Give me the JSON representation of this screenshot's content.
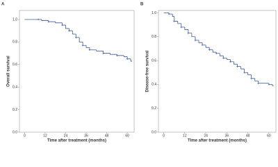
{
  "chart_data": [
    {
      "type": "line",
      "label": "A",
      "ylabel": "Overall survival",
      "xlabel": "Time after treatment (months)",
      "xlim": [
        -3,
        64
      ],
      "ylim": [
        0,
        1.08
      ],
      "xticks": [
        0,
        12,
        24,
        36,
        48,
        60
      ],
      "yticks": [
        {
          "value": 0,
          "label": "0.0"
        },
        {
          "value": 0.2,
          "label": "0.2"
        },
        {
          "value": 0.4,
          "label": "0.4"
        },
        {
          "value": 0.6,
          "label": "0.6"
        },
        {
          "value": 0.8,
          "label": "0.8"
        },
        {
          "value": 1,
          "label": "1.0"
        }
      ],
      "series": [
        {
          "color": "#3a5a9c",
          "x": [
            0,
            8,
            10,
            14,
            18,
            22,
            24,
            26,
            28,
            30,
            32,
            34,
            36,
            38,
            42,
            46,
            50,
            54,
            58,
            60,
            62
          ],
          "values": [
            1.0,
            1.0,
            0.99,
            0.98,
            0.97,
            0.95,
            0.92,
            0.9,
            0.87,
            0.84,
            0.8,
            0.77,
            0.75,
            0.73,
            0.72,
            0.7,
            0.69,
            0.68,
            0.67,
            0.65,
            0.63
          ]
        }
      ]
    },
    {
      "type": "line",
      "label": "B",
      "ylabel": "Disease-free survival",
      "xlabel": "Time after treatment (months)",
      "xlim": [
        -3,
        64
      ],
      "ylim": [
        0,
        1.02
      ],
      "xticks": [
        0,
        12,
        24,
        36,
        48,
        60
      ],
      "yticks": [
        {
          "value": 0,
          "label": "0.0"
        },
        {
          "value": 0.2,
          "label": "0.2"
        },
        {
          "value": 0.4,
          "label": "0.4"
        },
        {
          "value": 0.6,
          "label": "0.6"
        },
        {
          "value": 0.8,
          "label": "0.8"
        },
        {
          "value": 1,
          "label": "1.0"
        }
      ],
      "series": [
        {
          "color": "#3a5a9c",
          "x": [
            0,
            3,
            5,
            6,
            8,
            10,
            12,
            14,
            16,
            18,
            20,
            22,
            24,
            26,
            28,
            30,
            32,
            34,
            36,
            38,
            40,
            42,
            44,
            46,
            48,
            50,
            52,
            54,
            58,
            60,
            62
          ],
          "values": [
            1.0,
            0.99,
            0.97,
            0.93,
            0.91,
            0.88,
            0.86,
            0.83,
            0.8,
            0.77,
            0.75,
            0.73,
            0.71,
            0.69,
            0.67,
            0.66,
            0.64,
            0.62,
            0.61,
            0.59,
            0.57,
            0.55,
            0.53,
            0.5,
            0.48,
            0.45,
            0.43,
            0.41,
            0.41,
            0.4,
            0.39
          ]
        }
      ]
    }
  ]
}
